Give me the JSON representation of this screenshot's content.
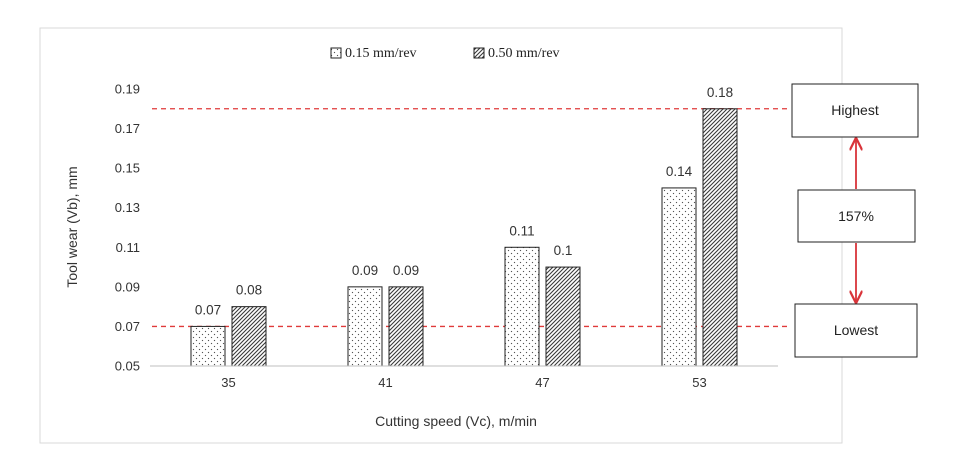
{
  "chart_data": {
    "type": "bar",
    "categories": [
      "35",
      "41",
      "47",
      "53"
    ],
    "series": [
      {
        "name": "0.15 mm/rev",
        "values": [
          0.07,
          0.09,
          0.11,
          0.14
        ],
        "labels": [
          "0.07",
          "0.09",
          "0.11",
          "0.14"
        ],
        "pattern": "dots"
      },
      {
        "name": "0.50 mm/rev",
        "values": [
          0.08,
          0.09,
          0.1,
          0.18
        ],
        "labels": [
          "0.08",
          "0.09",
          "0.1",
          "0.18"
        ],
        "pattern": "diagonal-hatch"
      }
    ],
    "xlabel": "Cutting speed (Vc), m/min",
    "ylabel": "Tool wear (Vb), mm",
    "ylim": [
      0.05,
      0.19
    ],
    "yticks": [
      "0.05",
      "0.07",
      "0.09",
      "0.11",
      "0.13",
      "0.15",
      "0.17",
      "0.19"
    ],
    "grid": false,
    "legend_position": "top-center",
    "reference_lines": [
      {
        "value": 0.18,
        "color": "#e03a3a",
        "style": "dashed"
      },
      {
        "value": 0.07,
        "color": "#e03a3a",
        "style": "dashed"
      }
    ],
    "annotations": {
      "highest": "Highest",
      "lowest": "Lowest",
      "difference": "157%",
      "arrow_color": "#d9343a"
    }
  }
}
